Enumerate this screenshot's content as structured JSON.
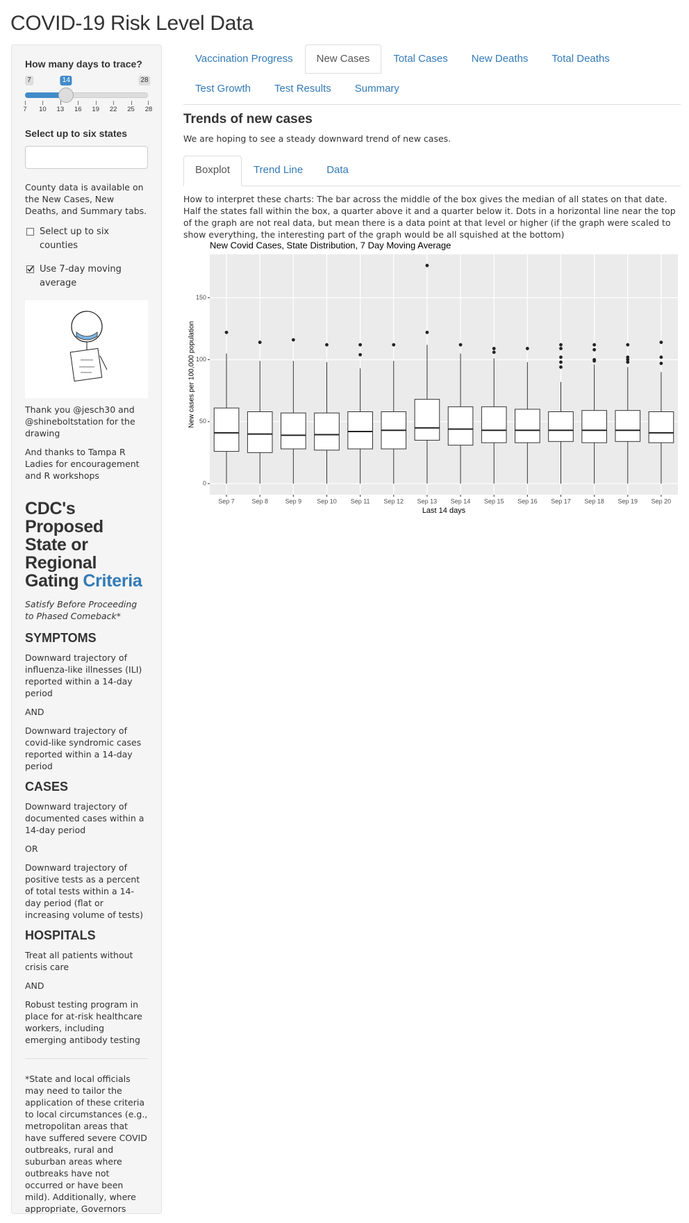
{
  "header": {
    "title": "COVID-19 Risk Level Data"
  },
  "sidebar": {
    "slider": {
      "label": "How many days to trace?",
      "min": 7,
      "max": 28,
      "value": 14,
      "ticks": [
        7,
        10,
        13,
        16,
        19,
        22,
        25,
        28
      ]
    },
    "states_label": "Select up to six states",
    "county_note": "County data is available on the New Cases, New Deaths, and Summary tabs.",
    "checkboxes": [
      {
        "label": "Select up to six counties",
        "checked": false
      },
      {
        "label": "Use 7-day moving average",
        "checked": true
      }
    ],
    "thanks": [
      "Thank you @jesch30 and @shineboltstation for the drawing",
      "And thanks to Tampa R Ladies for encouragement and R workshops"
    ],
    "cdc": {
      "title": "CDC's Proposed State or Regional Gating",
      "link": "Criteria",
      "subtitle": "Satisfy Before Proceeding to Phased Comeback*",
      "sections": [
        {
          "heading": "SYMPTOMS",
          "items": [
            "Downward trajectory of influenza-like illnesses (ILI) reported within a 14-day period",
            "AND",
            "Downward trajectory of covid-like syndromic cases reported within a 14-day period"
          ]
        },
        {
          "heading": "CASES",
          "items": [
            "Downward trajectory of documented cases within a 14-day period",
            "OR",
            "Downward trajectory of positive tests as a percent of total tests within a 14-day period (flat or increasing volume of tests)"
          ]
        },
        {
          "heading": "HOSPITALS",
          "items": [
            "Treat all patients without crisis care",
            "AND",
            "Robust testing program in place for at-risk healthcare workers, including emerging antibody testing"
          ]
        }
      ],
      "footnote": "*State and local officials may need to tailor the application of these criteria to local circumstances (e.g., metropolitan areas that have suffered severe COVID outbreaks, rural and suburban areas where outbreaks have not occurred or have been mild). Additionally, where appropriate, Governors should work on a regional basis to satisfy these criteria and to progress through the phases outlined below."
    }
  },
  "tabs": {
    "main": [
      "Vaccination Progress",
      "New Cases",
      "Total Cases",
      "New Deaths",
      "Total Deaths",
      "Test Growth",
      "Test Results",
      "Summary"
    ],
    "active": 1
  },
  "content": {
    "heading": "Trends of new cases",
    "intro": "We are hoping to see a steady downward trend of new cases.",
    "subtabs": [
      "Boxplot",
      "Trend Line",
      "Data"
    ],
    "subtab_active": 0,
    "explanation": "How to interpret these charts: The bar across the middle of the box gives the median of all states on that date. Half the states fall within the box, a quarter above it and a quarter below it. Dots in a horizontal line near the top of the graph are not real data, but mean there is a data point at that level or higher (if the graph were scaled to show everything, the interesting part of the graph would be all squished at the bottom)"
  },
  "chart_data": {
    "type": "boxplot",
    "title": "New Covid Cases, State Distribution, 7 Day Moving Average",
    "x_label": "Last 14 days",
    "y_label": "New cases per 100,000 population",
    "categories": [
      "Sep 7",
      "Sep 8",
      "Sep 9",
      "Sep 10",
      "Sep 11",
      "Sep 12",
      "Sep 13",
      "Sep 14",
      "Sep 15",
      "Sep 16",
      "Sep 17",
      "Sep 18",
      "Sep 19",
      "Sep 20"
    ],
    "min": [
      0,
      0,
      0,
      0,
      0,
      0,
      0,
      0,
      0,
      0,
      0,
      0,
      0,
      0
    ],
    "q1": [
      26,
      25,
      28,
      27,
      28,
      28,
      35,
      31,
      33,
      33,
      34,
      33,
      34,
      33
    ],
    "median": [
      41,
      40,
      39,
      39.5,
      42,
      43,
      45,
      44,
      43,
      43,
      43,
      43,
      43,
      41
    ],
    "q3": [
      61,
      58,
      57,
      57,
      58,
      58,
      68,
      62,
      62,
      60,
      58,
      59,
      59,
      58
    ],
    "max": [
      105,
      99,
      99,
      98,
      93,
      99,
      112,
      105,
      101,
      98,
      82,
      96,
      94,
      90
    ],
    "outliers": [
      [
        122
      ],
      [
        114
      ],
      [
        116
      ],
      [
        112
      ],
      [
        112,
        104
      ],
      [
        112
      ],
      [
        122,
        176
      ],
      [
        112
      ],
      [
        109,
        106
      ],
      [
        109
      ],
      [
        112,
        109,
        102,
        98,
        94
      ],
      [
        112,
        108,
        100,
        99
      ],
      [
        112,
        102,
        100,
        98
      ],
      [
        114,
        102,
        97
      ]
    ],
    "ylim": [
      -9,
      185
    ],
    "yticks": [
      0,
      50,
      100,
      150
    ],
    "grid": true,
    "color": "#ffffff"
  }
}
